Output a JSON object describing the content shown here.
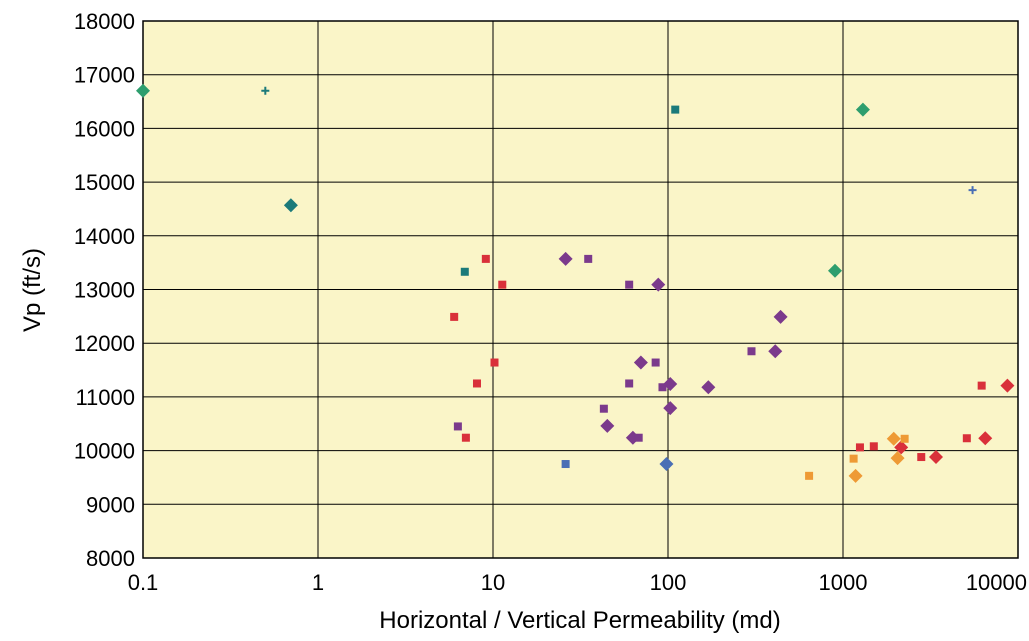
{
  "chart_data": {
    "type": "scatter",
    "xscale": "log",
    "xlim": [
      0.1,
      10000
    ],
    "ylim": [
      8000,
      18000
    ],
    "xlabel": "Horizontal / Vertical Permeability (md)",
    "ylabel": "Vp (ft/s)",
    "grid": true,
    "background": "#faf5c8",
    "x_ticks": [
      "0.1",
      "1",
      "10",
      "100",
      "1000",
      "10000"
    ],
    "x_tick_values": [
      0.1,
      1,
      10,
      100,
      1000,
      10000
    ],
    "y_ticks": [
      "8000",
      "9000",
      "10000",
      "11000",
      "12000",
      "13000",
      "14000",
      "15000",
      "16000",
      "17000",
      "18000"
    ],
    "y_tick_values": [
      8000,
      9000,
      10000,
      11000,
      12000,
      13000,
      14000,
      15000,
      16000,
      17000,
      18000
    ],
    "series": [
      {
        "color": "#2e9e6e",
        "points": [
          {
            "x": 0.1,
            "y": 16700,
            "marker": "diamond"
          },
          {
            "x": 1300,
            "y": 16350,
            "marker": "diamond"
          },
          {
            "x": 900,
            "y": 13350,
            "marker": "diamond"
          }
        ]
      },
      {
        "color": "#1b7a7a",
        "points": [
          {
            "x": 0.5,
            "y": 16700,
            "marker": "plus"
          },
          {
            "x": 0.7,
            "y": 14570,
            "marker": "diamond"
          },
          {
            "x": 110,
            "y": 16350,
            "marker": "square"
          },
          {
            "x": 6.9,
            "y": 13330,
            "marker": "square"
          }
        ]
      },
      {
        "color": "#4a6fb5",
        "points": [
          {
            "x": 5500,
            "y": 14850,
            "marker": "plus"
          },
          {
            "x": 26,
            "y": 9750,
            "marker": "square"
          },
          {
            "x": 98,
            "y": 9750,
            "marker": "diamond"
          }
        ]
      },
      {
        "color": "#7b3a8c",
        "points": [
          {
            "x": 26,
            "y": 13570,
            "marker": "diamond"
          },
          {
            "x": 35,
            "y": 13570,
            "marker": "square"
          },
          {
            "x": 60,
            "y": 13090,
            "marker": "square"
          },
          {
            "x": 88,
            "y": 13090,
            "marker": "diamond"
          },
          {
            "x": 440,
            "y": 12490,
            "marker": "diamond"
          },
          {
            "x": 300,
            "y": 11850,
            "marker": "square"
          },
          {
            "x": 410,
            "y": 11850,
            "marker": "diamond"
          },
          {
            "x": 70,
            "y": 11640,
            "marker": "diamond"
          },
          {
            "x": 85,
            "y": 11640,
            "marker": "square"
          },
          {
            "x": 93,
            "y": 11180,
            "marker": "square"
          },
          {
            "x": 103,
            "y": 11240,
            "marker": "diamond"
          },
          {
            "x": 60,
            "y": 11250,
            "marker": "square"
          },
          {
            "x": 170,
            "y": 11180,
            "marker": "diamond"
          },
          {
            "x": 43,
            "y": 10780,
            "marker": "square"
          },
          {
            "x": 103,
            "y": 10790,
            "marker": "diamond"
          },
          {
            "x": 6.3,
            "y": 10450,
            "marker": "square"
          },
          {
            "x": 45,
            "y": 10460,
            "marker": "diamond"
          },
          {
            "x": 63,
            "y": 10240,
            "marker": "diamond"
          },
          {
            "x": 68,
            "y": 10240,
            "marker": "square"
          }
        ]
      },
      {
        "color": "#d9303a",
        "points": [
          {
            "x": 9.1,
            "y": 13570,
            "marker": "square"
          },
          {
            "x": 11.3,
            "y": 13090,
            "marker": "square"
          },
          {
            "x": 6.0,
            "y": 12490,
            "marker": "square"
          },
          {
            "x": 10.2,
            "y": 11640,
            "marker": "square"
          },
          {
            "x": 8.1,
            "y": 11250,
            "marker": "square"
          },
          {
            "x": 7.0,
            "y": 10240,
            "marker": "square"
          },
          {
            "x": 6200,
            "y": 11210,
            "marker": "square"
          },
          {
            "x": 8700,
            "y": 11210,
            "marker": "diamond"
          },
          {
            "x": 5100,
            "y": 10230,
            "marker": "square"
          },
          {
            "x": 6500,
            "y": 10230,
            "marker": "diamond"
          },
          {
            "x": 1250,
            "y": 10060,
            "marker": "square"
          },
          {
            "x": 1500,
            "y": 10080,
            "marker": "square"
          },
          {
            "x": 2150,
            "y": 10060,
            "marker": "diamond"
          },
          {
            "x": 2800,
            "y": 9880,
            "marker": "square"
          },
          {
            "x": 3400,
            "y": 9880,
            "marker": "diamond"
          }
        ]
      },
      {
        "color": "#ee9a35",
        "points": [
          {
            "x": 640,
            "y": 9530,
            "marker": "square"
          },
          {
            "x": 1180,
            "y": 9530,
            "marker": "diamond"
          },
          {
            "x": 1150,
            "y": 9850,
            "marker": "square"
          },
          {
            "x": 1950,
            "y": 10220,
            "marker": "diamond"
          },
          {
            "x": 2250,
            "y": 10220,
            "marker": "square"
          },
          {
            "x": 2050,
            "y": 9860,
            "marker": "diamond"
          }
        ]
      }
    ]
  }
}
